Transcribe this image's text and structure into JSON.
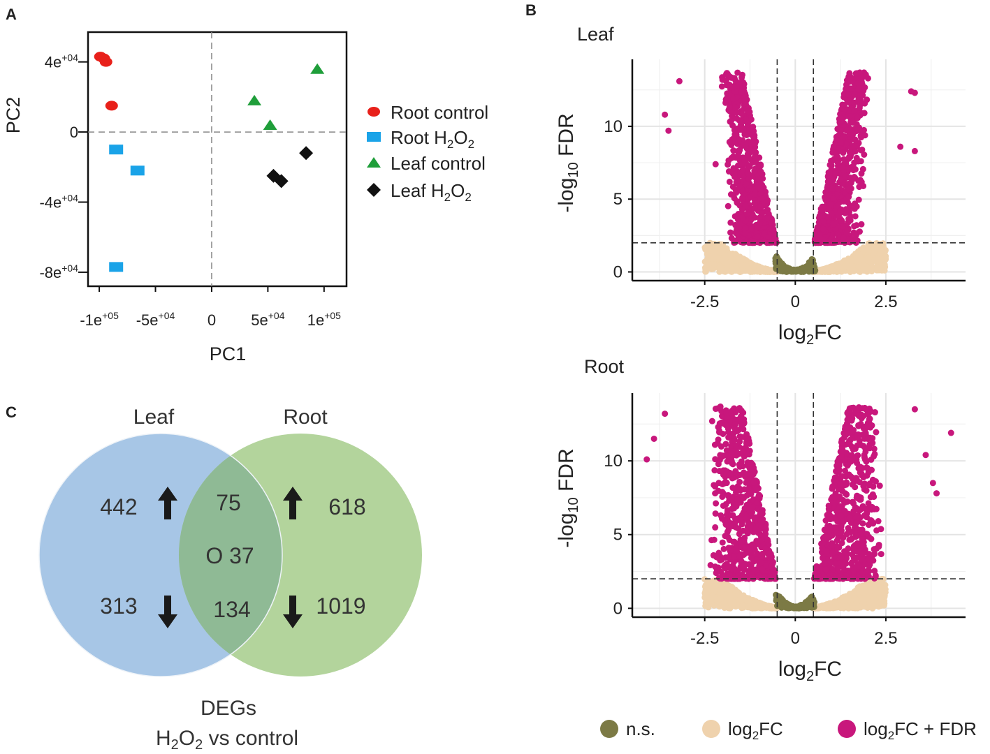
{
  "panel_labels": {
    "a": "A",
    "b": "B",
    "c": "C"
  },
  "colors": {
    "root_control": "#e8201a",
    "root_h2o2": "#1aa3e8",
    "leaf_control": "#1f9e3a",
    "leaf_h2o2": "#111111",
    "ns": "#7c7a45",
    "log2fc": "#efd2ad",
    "log2fc_fdr": "#c8177c",
    "venn_leaf": "#a7c6e6",
    "venn_root": "#b3d49c",
    "venn_overlap": "#8fba95"
  },
  "chart_data": [
    {
      "type": "scatter",
      "panel": "A",
      "xlabel": "PC1",
      "ylabel": "PC2",
      "xlim": [
        -110000,
        120000
      ],
      "ylim": [
        -88000,
        57000
      ],
      "xticks": [
        {
          "value": -100000,
          "base": "-1e",
          "exp": "+05"
        },
        {
          "value": -50000,
          "base": "-5e",
          "exp": "+04"
        },
        {
          "value": 0,
          "base": "0",
          "exp": ""
        },
        {
          "value": 50000,
          "base": "5e",
          "exp": "+04"
        },
        {
          "value": 100000,
          "base": "1e",
          "exp": "+05"
        }
      ],
      "yticks": [
        {
          "value": 40000,
          "base": "4e",
          "exp": "+04"
        },
        {
          "value": 0,
          "base": "0",
          "exp": ""
        },
        {
          "value": -40000,
          "base": "-4e",
          "exp": "+04"
        },
        {
          "value": -80000,
          "base": "-8e",
          "exp": "+04"
        }
      ],
      "series": [
        {
          "name": "Root control",
          "marker": "ellipse",
          "color": "#e8201a",
          "points": [
            [
              -99000,
              43000
            ],
            [
              -96000,
              42000
            ],
            [
              -94000,
              40000
            ],
            [
              -89000,
              15000
            ]
          ]
        },
        {
          "name": "Root H2O2",
          "marker": "square",
          "color": "#1aa3e8",
          "points": [
            [
              -85000,
              -10000
            ],
            [
              -66000,
              -22000
            ],
            [
              -85000,
              -77000
            ]
          ]
        },
        {
          "name": "Leaf control",
          "marker": "triangle",
          "color": "#1f9e3a",
          "points": [
            [
              38000,
              18000
            ],
            [
              52000,
              4000
            ],
            [
              94000,
              36000
            ]
          ]
        },
        {
          "name": "Leaf H2O2",
          "marker": "diamond",
          "color": "#111111",
          "points": [
            [
              55000,
              -25000
            ],
            [
              62000,
              -28000
            ],
            [
              84000,
              -12000
            ]
          ]
        }
      ],
      "legend": [
        {
          "name": "Root control",
          "text": "Root control",
          "sub": "",
          "after": "",
          "sub2": ""
        },
        {
          "name": "Root H2O2",
          "text": "Root H",
          "sub": "2",
          "after": "O",
          "sub2": "2"
        },
        {
          "name": "Leaf control",
          "text": "Leaf control",
          "sub": "",
          "after": "",
          "sub2": ""
        },
        {
          "name": "Leaf H2O2",
          "text": "Leaf H",
          "sub": "2",
          "after": "O",
          "sub2": "2"
        }
      ]
    },
    {
      "type": "scatter",
      "panel": "B-Leaf",
      "title": "Leaf",
      "xlabel_base": "log",
      "xlabel_sub": "2",
      "xlabel_after": "FC",
      "ylabel_pre": "-log",
      "ylabel_sub": "10",
      "ylabel_after": " FDR",
      "xlim": [
        -4.5,
        4.7
      ],
      "ylim": [
        -0.6,
        14.6
      ],
      "xticks": [
        "-2.5",
        "0",
        "2.5"
      ],
      "xtick_values": [
        -2.5,
        0,
        2.5
      ],
      "yticks": [
        "0",
        "5",
        "10"
      ],
      "ytick_values": [
        0,
        5,
        10
      ],
      "fc_threshold": 0.5,
      "fdr_threshold": 2,
      "max_y": 13.7,
      "outliers": [
        [
          -3.2,
          13.1
        ],
        [
          -3.6,
          10.8
        ],
        [
          -3.5,
          9.7
        ],
        [
          3.3,
          12.3
        ],
        [
          3.2,
          12.4
        ],
        [
          3.3,
          8.3
        ],
        [
          -2.2,
          7.4
        ],
        [
          2.9,
          8.6
        ]
      ]
    },
    {
      "type": "scatter",
      "panel": "B-Root",
      "title": "Root",
      "xlabel_base": "log",
      "xlabel_sub": "2",
      "xlabel_after": "FC",
      "ylabel_pre": "-log",
      "ylabel_sub": "10",
      "ylabel_after": " FDR",
      "xlim": [
        -4.5,
        4.7
      ],
      "ylim": [
        -0.6,
        14.6
      ],
      "xticks": [
        "-2.5",
        "0",
        "2.5"
      ],
      "xtick_values": [
        -2.5,
        0,
        2.5
      ],
      "yticks": [
        "0",
        "5",
        "10"
      ],
      "ytick_values": [
        0,
        5,
        10
      ],
      "fc_threshold": 0.5,
      "fdr_threshold": 2,
      "max_y": 13.7,
      "outliers": [
        [
          -4.1,
          10.1
        ],
        [
          -3.9,
          11.5
        ],
        [
          4.3,
          11.9
        ],
        [
          3.3,
          13.5
        ],
        [
          3.9,
          7.8
        ],
        [
          3.8,
          8.5
        ],
        [
          -3.6,
          13.2
        ],
        [
          3.6,
          10.4
        ]
      ]
    }
  ],
  "volcano_legend": [
    {
      "key": "ns",
      "text": "n.s.",
      "sub": "",
      "after": ""
    },
    {
      "key": "log2fc",
      "text": "log",
      "sub": "2",
      "after": "FC"
    },
    {
      "key": "log2fc_fdr",
      "text": "log",
      "sub": "2",
      "after": "FC + FDR"
    }
  ],
  "venn": {
    "leaf_label": "Leaf",
    "root_label": "Root",
    "leaf_up": "442",
    "leaf_down": "313",
    "overlap_up": "75",
    "overlap_opposite": "O 37",
    "overlap_down": "134",
    "root_up": "618",
    "root_down": "1019",
    "caption_line1": "DEGs",
    "caption_line2_a": "H",
    "caption_line2_sub1": "2",
    "caption_line2_b": "O",
    "caption_line2_sub2": "2",
    "caption_line2_c": " vs control"
  }
}
